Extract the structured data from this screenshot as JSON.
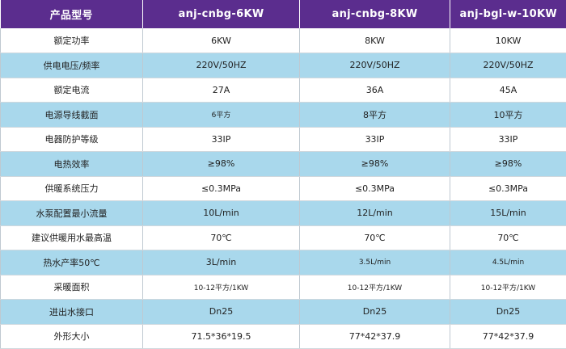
{
  "table": {
    "headers": [
      "产品型号",
      "anj-cnbg-6KW",
      "anj-cnbg-8KW",
      "anj-bgl-w-10KW"
    ],
    "rows": [
      [
        "额定功率",
        "6KW",
        "8KW",
        "10KW"
      ],
      [
        "供电电压/频率",
        "220V/50HZ",
        "220V/50HZ",
        "220V/50HZ"
      ],
      [
        "额定电流",
        "27A",
        "36A",
        "45A"
      ],
      [
        "电源导线截面",
        "6平方",
        "8平方",
        "10平方"
      ],
      [
        "电器防护等级",
        "33IP",
        "33IP",
        "33IP"
      ],
      [
        "电热效率",
        "≥98%",
        "≥98%",
        "≥98%"
      ],
      [
        "供暖系统压力",
        "≤0.3MPa",
        "≤0.3MPa",
        "≤0.3MPa"
      ],
      [
        "水泵配置最小流量",
        "10L/min",
        "12L/min",
        "15L/min"
      ],
      [
        "建议供暖用水最高温",
        "70℃",
        "70℃",
        "70℃"
      ],
      [
        "热水产率50℃",
        "3L/min",
        "3.5L/min",
        "4.5L/min"
      ],
      [
        "采暖面积",
        "10-12平方/1KW",
        "10-12平方/1KW",
        "10-12平方/1KW"
      ],
      [
        "进出水接口",
        "Dn25",
        "Dn25",
        "Dn25"
      ],
      [
        "外形大小",
        "71.5*36*19.5",
        "77*42*37.9",
        "77*42*37.9"
      ]
    ]
  },
  "colors": {
    "header_bg": "#5b2d8e",
    "stripe_bg": "#a9d8ec",
    "row_bg": "#ffffff"
  }
}
